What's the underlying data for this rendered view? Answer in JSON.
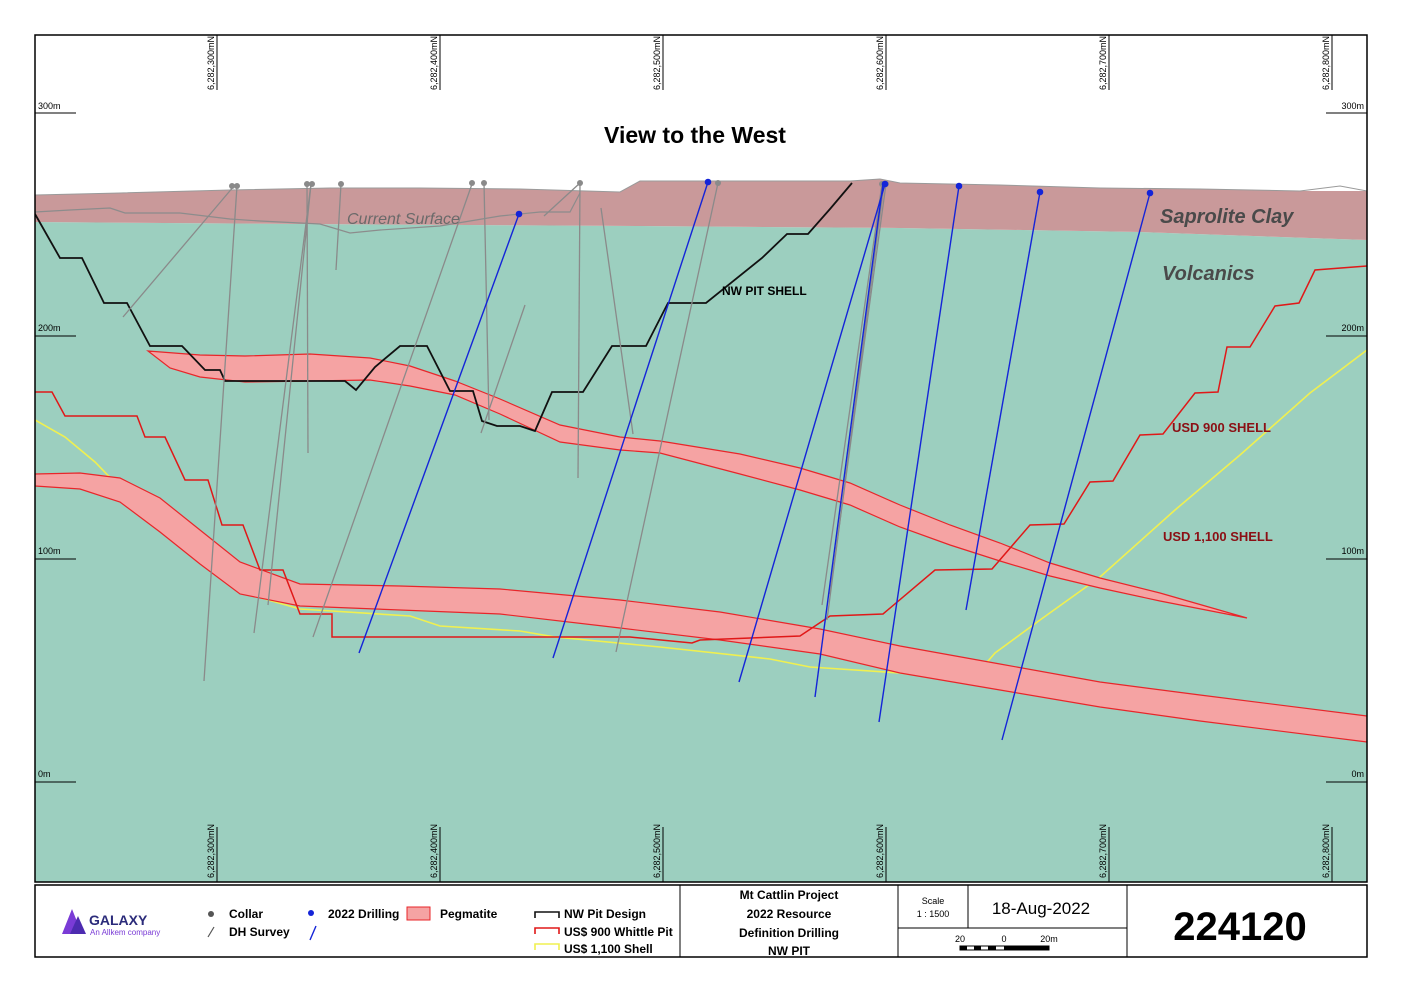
{
  "view_title": "View to the West",
  "elevation_labels": {
    "top": "300m",
    "mid_upper": "200m",
    "mid_lower": "100m",
    "bottom": "0m"
  },
  "northing_labels": [
    "6,282,300mN",
    "6,282,400mN",
    "6,282,500mN",
    "6,282,600mN",
    "6,282,700mN",
    "6,282,800mN"
  ],
  "units": {
    "saprolite": "Saprolite Clay",
    "volcanics": "Volcanics",
    "current_surface": "Current Surface"
  },
  "shell_labels": {
    "nw_pit": "NW PIT SHELL",
    "usd900": "USD 900 SHELL",
    "usd1100": "USD 1,100 SHELL"
  },
  "colors": {
    "volcanics": "#9ccfbf",
    "saprolite": "#c9999a",
    "pegmatite_fill": "#f5a3a3",
    "pegmatite_edge": "#e8262a",
    "pit_design": "#111111",
    "whittle_900": "#e01818",
    "shell_1100": "#f0f050",
    "drill_2022": "#1424d8",
    "drill_historic": "#8a8a8a",
    "shell_label_red": "#8b0f14"
  },
  "legend": {
    "logo_name": "GALAXY",
    "logo_tagline": "An Allkem company",
    "collar": "Collar",
    "dh_survey": "DH Survey",
    "drilling_2022": "2022 Drilling",
    "pegmatite": "Pegmatite",
    "nw_pit_design": "NW Pit Design",
    "whittle_900": "US$ 900 Whittle Pit",
    "shell_1100": "US$ 1,100 Shell"
  },
  "project": {
    "line1": "Mt Cattlin Project",
    "line2": "2022 Resource",
    "line3": "Definition Drilling",
    "line4": "NW PIT"
  },
  "scale": {
    "label": "Scale",
    "ratio": "1 : 1500",
    "bar_left": "20",
    "bar_mid": "0",
    "bar_right": "20m"
  },
  "date": "18-Aug-2022",
  "drawing_number": "224120"
}
